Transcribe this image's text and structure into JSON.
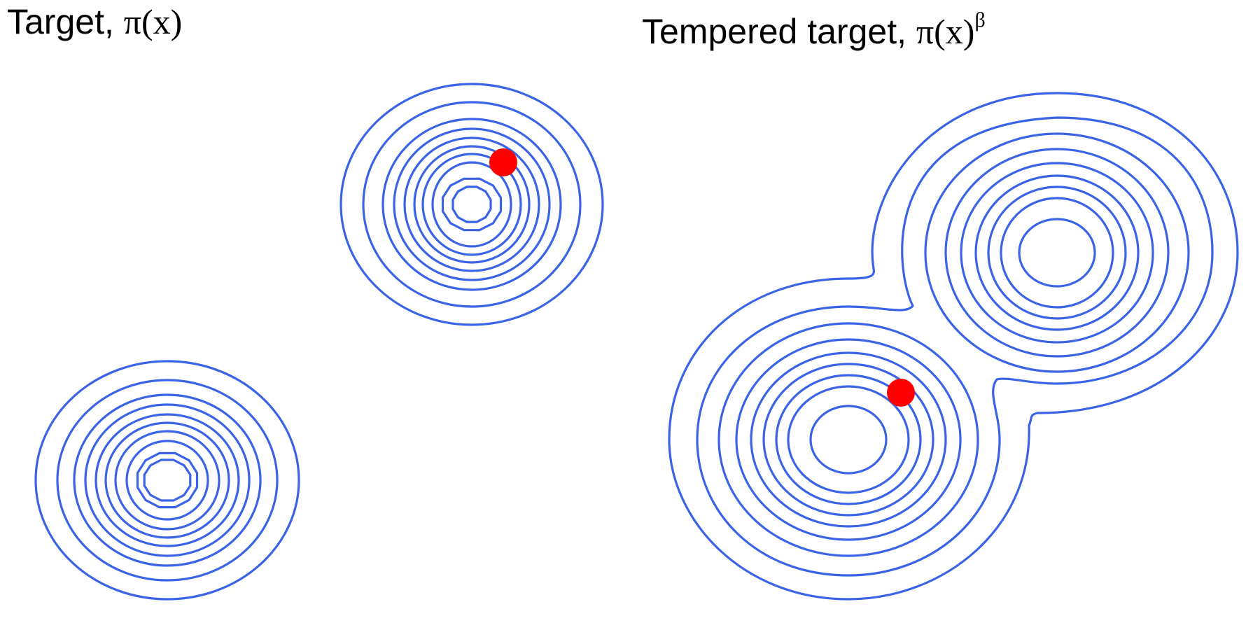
{
  "left_panel": {
    "title_prefix": "Target, ",
    "title_symbol": "π",
    "title_arg": "(x)"
  },
  "right_panel": {
    "title_prefix": "Tempered target, ",
    "title_symbol": "π",
    "title_arg": "(x)",
    "title_exponent": "β"
  },
  "colors": {
    "contour": "#3b63e6",
    "sample_point": "#ff0000"
  },
  "icons": {
    "sample_point": "red-dot-marker"
  }
}
